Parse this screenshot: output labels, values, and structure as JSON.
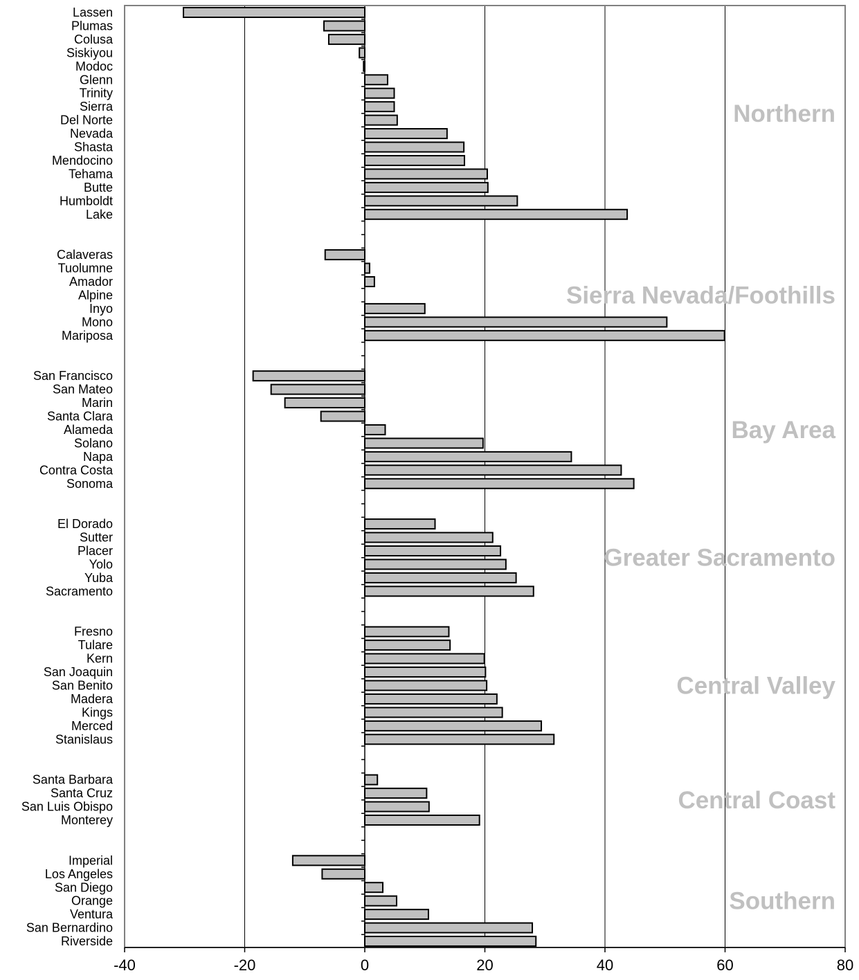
{
  "chart_data": {
    "type": "bar",
    "orientation": "horizontal",
    "xlim": [
      -40,
      80
    ],
    "x_ticks": [
      -40,
      -20,
      0,
      20,
      40,
      60,
      80
    ],
    "grid": "vertical",
    "bar_color": "#c0c0c0",
    "region_label_color": "#c0c0c0",
    "groups": [
      {
        "name": "Northern",
        "categories": [
          {
            "label": "Lassen",
            "value": -30.2
          },
          {
            "label": "Plumas",
            "value": -6.8
          },
          {
            "label": "Colusa",
            "value": -6.0
          },
          {
            "label": "Siskiyou",
            "value": -0.9
          },
          {
            "label": "Modoc",
            "value": -0.2
          },
          {
            "label": "Glenn",
            "value": 3.8
          },
          {
            "label": "Trinity",
            "value": 4.9
          },
          {
            "label": "Sierra",
            "value": 4.9
          },
          {
            "label": "Del Norte",
            "value": 5.4
          },
          {
            "label": "Nevada",
            "value": 13.7
          },
          {
            "label": "Shasta",
            "value": 16.5
          },
          {
            "label": "Mendocino",
            "value": 16.6
          },
          {
            "label": "Tehama",
            "value": 20.4
          },
          {
            "label": "Butte",
            "value": 20.5
          },
          {
            "label": "Humboldt",
            "value": 25.4
          },
          {
            "label": "Lake",
            "value": 43.7
          }
        ]
      },
      {
        "name": "Sierra Nevada/Foothills",
        "categories": [
          {
            "label": "Calaveras",
            "value": -6.6
          },
          {
            "label": "Tuolumne",
            "value": 0.8
          },
          {
            "label": "Amador",
            "value": 1.6
          },
          {
            "label": "Alpine",
            "value": 0.0
          },
          {
            "label": "Inyo",
            "value": 10.0
          },
          {
            "label": "Mono",
            "value": 50.3
          },
          {
            "label": "Mariposa",
            "value": 59.9
          }
        ]
      },
      {
        "name": "Bay Area",
        "categories": [
          {
            "label": "San Francisco",
            "value": -18.6
          },
          {
            "label": "San Mateo",
            "value": -15.6
          },
          {
            "label": "Marin",
            "value": -13.3
          },
          {
            "label": "Santa Clara",
            "value": -7.3
          },
          {
            "label": "Alameda",
            "value": 3.4
          },
          {
            "label": "Solano",
            "value": 19.7
          },
          {
            "label": "Napa",
            "value": 34.4
          },
          {
            "label": "Contra Costa",
            "value": 42.7
          },
          {
            "label": "Sonoma",
            "value": 44.8
          }
        ]
      },
      {
        "name": "Greater Sacramento",
        "categories": [
          {
            "label": "El Dorado",
            "value": 11.7
          },
          {
            "label": "Sutter",
            "value": 21.3
          },
          {
            "label": "Placer",
            "value": 22.6
          },
          {
            "label": "Yolo",
            "value": 23.5
          },
          {
            "label": "Yuba",
            "value": 25.2
          },
          {
            "label": "Sacramento",
            "value": 28.1
          }
        ]
      },
      {
        "name": "Central Valley",
        "categories": [
          {
            "label": "Fresno",
            "value": 14.0
          },
          {
            "label": "Tulare",
            "value": 14.2
          },
          {
            "label": "Kern",
            "value": 19.9
          },
          {
            "label": "San Joaquin",
            "value": 20.1
          },
          {
            "label": "San Benito",
            "value": 20.3
          },
          {
            "label": "Madera",
            "value": 22.0
          },
          {
            "label": "Kings",
            "value": 22.9
          },
          {
            "label": "Merced",
            "value": 29.4
          },
          {
            "label": "Stanislaus",
            "value": 31.5
          }
        ]
      },
      {
        "name": "Central Coast",
        "categories": [
          {
            "label": "Santa Barbara",
            "value": 2.1
          },
          {
            "label": "Santa Cruz",
            "value": 10.3
          },
          {
            "label": "San Luis Obispo",
            "value": 10.7
          },
          {
            "label": "Monterey",
            "value": 19.1
          }
        ]
      },
      {
        "name": "Southern",
        "categories": [
          {
            "label": "Imperial",
            "value": -12.0
          },
          {
            "label": "Los Angeles",
            "value": -7.1
          },
          {
            "label": "San Diego",
            "value": 3.0
          },
          {
            "label": "Orange",
            "value": 5.3
          },
          {
            "label": "Ventura",
            "value": 10.6
          },
          {
            "label": "San Bernardino",
            "value": 27.9
          },
          {
            "label": "Riverside",
            "value": 28.5
          }
        ]
      }
    ]
  }
}
